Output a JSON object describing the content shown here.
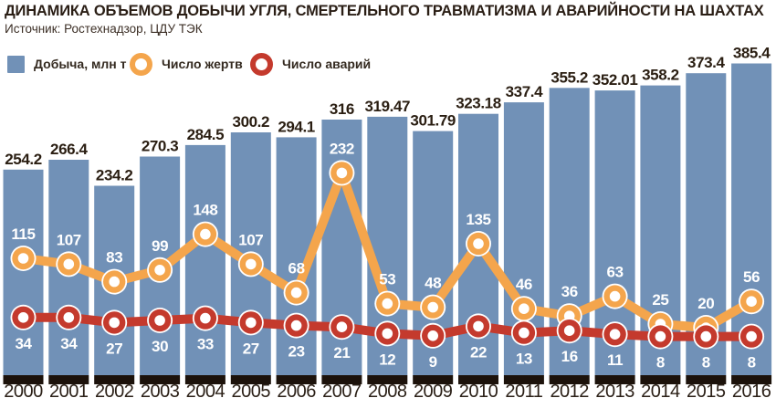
{
  "header": {
    "title": "ДИНАМИКА ОБЪЕМОВ ДОБЫЧИ УГЛЯ, СМЕРТЕЛЬНОГО ТРАВМАТИЗМА И АВАРИЙНОСТИ НА ШАХТАХ",
    "source": "Источник: Ростехнадзор, ЦДУ ТЭК"
  },
  "legend": {
    "items": [
      {
        "label": "Добыча, млн т",
        "swatch": "square",
        "color": "#7191b7"
      },
      {
        "label": "Число жертв",
        "swatch": "ring",
        "color": "#f4a54c"
      },
      {
        "label": "Число аварий",
        "swatch": "ring",
        "color": "#c43a2d"
      }
    ]
  },
  "chart_data": {
    "type": "bar+line",
    "title": "ДИНАМИКА ОБЪЕМОВ ДОБЫЧИ УГЛЯ, СМЕРТЕЛЬНОГО ТРАВМАТИЗМА И АВАРИЙНОСТИ НА ШАХТАХ",
    "subtitle": "Источник: Ростехнадзор, ЦДУ ТЭК",
    "categories": [
      "2000",
      "2001",
      "2002",
      "2003",
      "2004",
      "2005",
      "2006",
      "2007",
      "2008",
      "2009",
      "2010",
      "2011",
      "2012",
      "2013",
      "2014",
      "2015",
      "2016"
    ],
    "series": [
      {
        "name": "Добыча, млн т",
        "type": "bar",
        "color": "#7191b7",
        "base_color": "#1c120b",
        "values": [
          254.2,
          266.4,
          234.2,
          270.3,
          284.5,
          300.2,
          294.1,
          316,
          319.47,
          301.79,
          323.18,
          337.4,
          355.2,
          352.01,
          358.2,
          373.4,
          385.4
        ]
      },
      {
        "name": "Число жертв",
        "type": "line",
        "color": "#f4a54c",
        "values": [
          115,
          107,
          83,
          99,
          148,
          107,
          68,
          232,
          53,
          48,
          135,
          46,
          36,
          63,
          25,
          20,
          56
        ]
      },
      {
        "name": "Число аварий",
        "type": "line",
        "color": "#c43a2d",
        "values": [
          34,
          34,
          27,
          30,
          33,
          27,
          23,
          21,
          12,
          9,
          22,
          13,
          16,
          11,
          8,
          8,
          8
        ]
      }
    ],
    "value_labels": true,
    "axes_visible": false,
    "grid": false,
    "legend_position": "top-left",
    "label_colors": {
      "bar_value": "#2a1e12",
      "line_value": "#ffffff",
      "year": "#2b2017"
    }
  }
}
